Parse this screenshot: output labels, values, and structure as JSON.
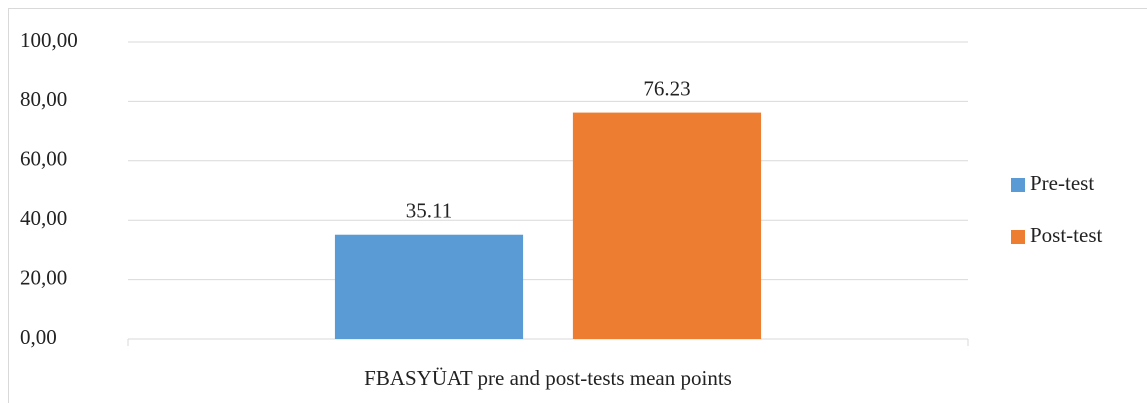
{
  "chart_data": {
    "type": "bar",
    "categories": [
      "FBASYÜAT pre and post-tests mean points"
    ],
    "series": [
      {
        "name": "Pre-test",
        "color": "#5b9bd5",
        "values": [
          35.11
        ]
      },
      {
        "name": "Post-test",
        "color": "#ed7d31",
        "values": [
          76.23
        ]
      }
    ],
    "ylim": [
      0,
      100
    ],
    "yticks": [
      {
        "value": 0,
        "label": "0,00"
      },
      {
        "value": 20,
        "label": "20,00"
      },
      {
        "value": 40,
        "label": "40,00"
      },
      {
        "value": 60,
        "label": "60,00"
      },
      {
        "value": 80,
        "label": "80,00"
      },
      {
        "value": 100,
        "label": "100,00"
      }
    ],
    "grid": true,
    "legend": "right",
    "data_labels": true
  }
}
